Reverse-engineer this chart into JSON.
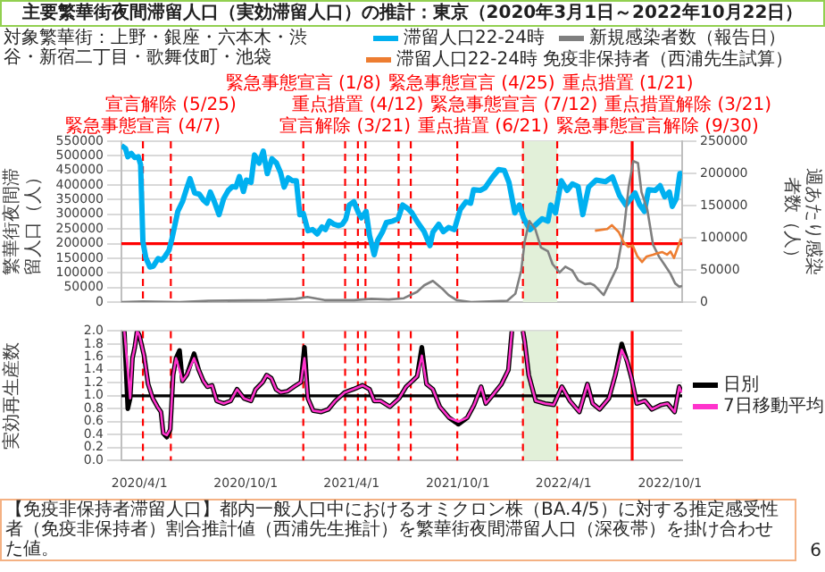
{
  "chart_data": [
    {
      "type": "line",
      "title": "主要繁華街夜間滞留人口（実効滞留人口）の推計：東京（2020年3月1日～2022年10月22日）",
      "subtitle": "対象繁華街：上野・銀座・六本木・渋谷・新宿二丁目・歌舞伎町・池袋",
      "ylabel": "繁華街夜間滞留人口（人）",
      "y2label": "週あたり感染者数（人）",
      "xlim": [
        "2020-03-01",
        "2022-10-22"
      ],
      "ylim": [
        0,
        550000
      ],
      "yticks": [
        0,
        50000,
        100000,
        150000,
        200000,
        250000,
        300000,
        350000,
        400000,
        450000,
        500000,
        550000
      ],
      "y2lim": [
        0,
        250000
      ],
      "y2ticks": [
        0,
        50000,
        100000,
        150000,
        200000,
        250000
      ],
      "grid": "y",
      "legend": "top",
      "tick_labels": "y",
      "marker": "none",
      "series": [
        {
          "name": "滞留人口22-24時",
          "color": "#00b0f0",
          "x": [
            "2020-03-01",
            "2020-03-08",
            "2020-03-12",
            "2020-03-18",
            "2020-03-24",
            "2020-03-30",
            "2020-04-03",
            "2020-04-07",
            "2020-04-12",
            "2020-04-19",
            "2020-04-25",
            "2020-05-03",
            "2020-05-09",
            "2020-05-15",
            "2020-05-22",
            "2020-05-27",
            "2020-06-06",
            "2020-06-14",
            "2020-06-21",
            "2020-06-27",
            "2020-07-05",
            "2020-07-13",
            "2020-07-20",
            "2020-07-26",
            "2020-08-01",
            "2020-08-08",
            "2020-08-16",
            "2020-08-24",
            "2020-09-01",
            "2020-09-08",
            "2020-09-14",
            "2020-09-20",
            "2020-09-27",
            "2020-10-02",
            "2020-10-10",
            "2020-10-16",
            "2020-10-24",
            "2020-10-31",
            "2020-11-07",
            "2020-11-15",
            "2020-11-23",
            "2020-11-30",
            "2020-12-06",
            "2020-12-13",
            "2020-12-20",
            "2020-12-27",
            "2021-01-02",
            "2021-01-08",
            "2021-01-16",
            "2021-01-24",
            "2021-02-01",
            "2021-02-09",
            "2021-02-15",
            "2021-02-22",
            "2021-03-02",
            "2021-03-10",
            "2021-03-16",
            "2021-03-22",
            "2021-03-28",
            "2021-04-05",
            "2021-04-13",
            "2021-04-18",
            "2021-04-26",
            "2021-05-02",
            "2021-05-10",
            "2021-05-16",
            "2021-05-24",
            "2021-05-31",
            "2021-06-11",
            "2021-06-20",
            "2021-06-28",
            "2021-07-06",
            "2021-07-14",
            "2021-07-24",
            "2021-08-04",
            "2021-08-14",
            "2021-08-19",
            "2021-08-29",
            "2021-09-06",
            "2021-09-15",
            "2021-09-25",
            "2021-10-05",
            "2021-10-15",
            "2021-10-23",
            "2021-10-28",
            "2021-11-09",
            "2021-11-17",
            "2021-11-29",
            "2021-12-10",
            "2021-12-20",
            "2021-12-28",
            "2022-01-07",
            "2022-01-15",
            "2022-01-22",
            "2022-02-02",
            "2022-02-11",
            "2022-02-23",
            "2022-03-05",
            "2022-03-10",
            "2022-03-18",
            "2022-03-28",
            "2022-04-07",
            "2022-04-16",
            "2022-04-26",
            "2022-05-04",
            "2022-05-14",
            "2022-05-27",
            "2022-06-12",
            "2022-06-24",
            "2022-07-06",
            "2022-07-17",
            "2022-08-02",
            "2022-08-10",
            "2022-08-18",
            "2022-08-25",
            "2022-09-06",
            "2022-09-14",
            "2022-09-22",
            "2022-09-30",
            "2022-10-05",
            "2022-10-12",
            "2022-10-18",
            "2022-10-22"
          ],
          "values": [
            535000,
            525000,
            497000,
            508000,
            494000,
            497000,
            470000,
            206000,
            151000,
            120000,
            123000,
            149000,
            143000,
            156000,
            178000,
            217000,
            310000,
            343000,
            387000,
            422000,
            373000,
            369000,
            349000,
            338000,
            376000,
            343000,
            299000,
            354000,
            382000,
            395000,
            393000,
            429000,
            378000,
            417000,
            409000,
            503000,
            475000,
            516000,
            439000,
            490000,
            475000,
            442000,
            393000,
            425000,
            415000,
            415000,
            299000,
            303000,
            244000,
            248000,
            233000,
            257000,
            248000,
            277000,
            266000,
            261000,
            266000,
            283000,
            332000,
            343000,
            305000,
            288000,
            310000,
            228000,
            162000,
            211000,
            239000,
            272000,
            277000,
            285000,
            332000,
            321000,
            305000,
            272000,
            241000,
            193000,
            239000,
            266000,
            241000,
            255000,
            248000,
            316000,
            343000,
            338000,
            384000,
            382000,
            391000,
            426000,
            453000,
            450000,
            409000,
            305000,
            332000,
            288000,
            248000,
            263000,
            285000,
            277000,
            332000,
            305000,
            415000,
            382000,
            404000,
            395000,
            299000,
            393000,
            417000,
            412000,
            428000,
            365000,
            332000,
            373000,
            332000,
            310000,
            384000,
            382000,
            398000,
            360000,
            376000,
            327000,
            354000,
            439000,
            440000
          ]
        },
        {
          "name": "新規感染者数（報告日）",
          "color": "#7f7f7f",
          "axis": "y2",
          "x": [
            "2020-03-01",
            "2020-04-07",
            "2020-06-09",
            "2020-07-29",
            "2020-11-06",
            "2020-12-26",
            "2021-01-15",
            "2021-02-14",
            "2021-04-05",
            "2021-05-05",
            "2021-06-04",
            "2021-06-30",
            "2021-07-23",
            "2021-08-04",
            "2021-08-19",
            "2021-09-04",
            "2021-09-15",
            "2021-09-29",
            "2021-10-24",
            "2021-12-25",
            "2022-01-08",
            "2022-01-18",
            "2022-01-24",
            "2022-02-01",
            "2022-02-11",
            "2022-02-21",
            "2022-03-05",
            "2022-03-13",
            "2022-03-25",
            "2022-04-04",
            "2022-04-16",
            "2022-04-26",
            "2022-05-08",
            "2022-05-17",
            "2022-05-24",
            "2022-06-09",
            "2022-07-02",
            "2022-07-14",
            "2022-07-22",
            "2022-07-30",
            "2022-08-07",
            "2022-08-13",
            "2022-08-23",
            "2022-09-02",
            "2022-09-12",
            "2022-09-21",
            "2022-10-02",
            "2022-10-10",
            "2022-10-17",
            "2022-10-22"
          ],
          "values": [
            0,
            1000,
            0,
            2000,
            3000,
            5000,
            8000,
            3000,
            3000,
            5000,
            4000,
            6000,
            16000,
            26000,
            33000,
            21000,
            11000,
            3000,
            0,
            2000,
            13000,
            49000,
            94000,
            126000,
            114000,
            85000,
            79000,
            59000,
            46000,
            55000,
            49000,
            34000,
            28000,
            29000,
            26000,
            11000,
            54000,
            114000,
            179000,
            219000,
            216000,
            171000,
            144000,
            89000,
            71000,
            59000,
            44000,
            29000,
            24000,
            25000
          ]
        },
        {
          "name": "滞留人口22-24時 免疫非保持者（西浦先生試算）",
          "color": "#ed7d31",
          "x": [
            "2022-05-25",
            "2022-06-15",
            "2022-06-23",
            "2022-07-05",
            "2022-07-13",
            "2022-07-21",
            "2022-07-29",
            "2022-08-06",
            "2022-08-14",
            "2022-08-22",
            "2022-09-02",
            "2022-09-10",
            "2022-09-18",
            "2022-09-26",
            "2022-10-02",
            "2022-10-08",
            "2022-10-20"
          ],
          "values": [
            244000,
            250000,
            263000,
            239000,
            206000,
            189000,
            193000,
            156000,
            137000,
            156000,
            162000,
            167000,
            171000,
            162000,
            173000,
            151000,
            217000
          ]
        }
      ],
      "ref_lines": [
        {
          "axis": "x",
          "value": "2020-04-07",
          "label": "緊急事態宣言 (4/7)",
          "color": "#ff0000",
          "line_style": "dashed"
        },
        {
          "axis": "x",
          "value": "2020-05-25",
          "label": "宣言解除 (5/25)",
          "color": "#ff0000",
          "line_style": "dashed"
        },
        {
          "axis": "x",
          "value": "2021-01-08",
          "label": "緊急事態宣言 (1/8)",
          "color": "#ff0000",
          "line_style": "dashed"
        },
        {
          "axis": "x",
          "value": "2021-03-21",
          "label": "宣言解除 (3/21)",
          "color": "#ff0000",
          "line_style": "dashed"
        },
        {
          "axis": "x",
          "value": "2021-04-12",
          "label": "重点措置 (4/12)",
          "color": "#ff0000",
          "line_style": "dashed"
        },
        {
          "axis": "x",
          "value": "2021-04-25",
          "label": "緊急事態宣言 (4/25)",
          "color": "#ff0000",
          "line_style": "dashed"
        },
        {
          "axis": "x",
          "value": "2021-06-21",
          "label": "重点措置 (6/21)",
          "color": "#ff0000",
          "line_style": "dashed"
        },
        {
          "axis": "x",
          "value": "2021-07-12",
          "label": "緊急事態宣言 (7/12)",
          "color": "#ff0000",
          "line_style": "dashed"
        },
        {
          "axis": "x",
          "value": "2021-09-30",
          "label": "緊急事態宣言解除 (9/30)",
          "color": "#ff0000",
          "line_style": "dashed"
        },
        {
          "axis": "x",
          "value": "2022-01-21",
          "label": "重点措置 (1/21)",
          "color": "#ff0000",
          "line_style": "dashed"
        },
        {
          "axis": "x",
          "value": "2022-03-21",
          "label": "重点措置解除 (3/21)",
          "color": "#ff0000",
          "line_style": "dashed"
        },
        {
          "axis": "x",
          "value": "2022-07-28",
          "color": "#ff0000",
          "line_style": "solid"
        },
        {
          "axis": "y",
          "value": 200000,
          "color": "#ff0000",
          "line_style": "solid"
        }
      ],
      "bands": [
        {
          "axis": "x",
          "from": "2022-01-21",
          "to": "2022-03-21",
          "color": "#e2f0d9"
        }
      ]
    },
    {
      "type": "line",
      "ylabel": "実効再生産数",
      "xlim": [
        "2020-03-01",
        "2022-10-22"
      ],
      "ylim": [
        0,
        2
      ],
      "yticks": [
        {
          "value": 0,
          "label": "0.0"
        },
        0.2,
        0.4,
        0.6,
        0.8,
        {
          "value": 1,
          "label": "1.0"
        },
        1.2,
        1.4,
        1.6,
        1.8,
        {
          "value": 2,
          "label": "2.0"
        }
      ],
      "xticks": [
        {
          "value": "2020-04-01",
          "label": "2020/4/1"
        },
        {
          "value": "2020-10-01",
          "label": "2020/10/1"
        },
        {
          "value": "2021-04-01",
          "label": "2021/4/1"
        },
        {
          "value": "2021-10-01",
          "label": "2021/10/1"
        },
        {
          "value": "2022-04-01",
          "label": "2022/4/1"
        },
        {
          "value": "2022-10-01",
          "label": "2022/10/1"
        }
      ],
      "grid": "y",
      "legend": "right",
      "marker": "none",
      "x": [
        "2020-03-06",
        "2020-03-12",
        "2020-03-16",
        "2020-03-20",
        "2020-03-24",
        "2020-03-28",
        "2020-04-01",
        "2020-04-09",
        "2020-04-16",
        "2020-04-24",
        "2020-05-02",
        "2020-05-08",
        "2020-05-12",
        "2020-05-18",
        "2020-05-24",
        "2020-05-29",
        "2020-06-03",
        "2020-06-09",
        "2020-06-14",
        "2020-06-22",
        "2020-07-04",
        "2020-07-12",
        "2020-07-20",
        "2020-07-27",
        "2020-08-04",
        "2020-08-12",
        "2020-08-24",
        "2020-09-05",
        "2020-09-16",
        "2020-09-28",
        "2020-10-10",
        "2020-10-18",
        "2020-10-30",
        "2020-11-06",
        "2020-11-14",
        "2020-11-22",
        "2020-11-30",
        "2020-12-12",
        "2020-12-23",
        "2021-01-04",
        "2021-01-10",
        "2021-01-16",
        "2021-01-25",
        "2021-02-08",
        "2021-02-20",
        "2021-03-04",
        "2021-03-20",
        "2021-04-04",
        "2021-04-20",
        "2021-05-02",
        "2021-05-10",
        "2021-05-21",
        "2021-06-06",
        "2021-06-22",
        "2021-07-04",
        "2021-07-15",
        "2021-07-23",
        "2021-07-31",
        "2021-08-08",
        "2021-08-19",
        "2021-08-31",
        "2021-09-16",
        "2021-10-02",
        "2021-10-17",
        "2021-10-29",
        "2021-11-10",
        "2021-11-18",
        "2021-11-30",
        "2021-12-15",
        "2021-12-27",
        "2022-01-02",
        "2022-01-12",
        "2022-01-21",
        "2022-01-24",
        "2022-01-31",
        "2022-02-12",
        "2022-02-28",
        "2022-03-15",
        "2022-03-29",
        "2022-04-12",
        "2022-04-28",
        "2022-05-12",
        "2022-05-21",
        "2022-06-02",
        "2022-06-18",
        "2022-06-29",
        "2022-07-10",
        "2022-07-19",
        "2022-07-27",
        "2022-08-05",
        "2022-08-19",
        "2022-08-31",
        "2022-09-16",
        "2022-09-27",
        "2022-10-09",
        "2022-10-17",
        "2022-10-21"
      ],
      "series": [
        {
          "name": "日別",
          "color": "#000000",
          "values": [
            2.0,
            0.8,
            0.96,
            1.58,
            1.75,
            2.0,
            1.93,
            1.62,
            1.18,
            0.96,
            0.83,
            0.75,
            0.42,
            0.36,
            0.48,
            1.32,
            1.58,
            1.7,
            1.23,
            1.33,
            1.65,
            1.4,
            1.23,
            1.14,
            1.16,
            0.92,
            0.88,
            0.92,
            1.1,
            0.96,
            0.92,
            1.1,
            1.21,
            1.32,
            1.27,
            1.1,
            1.05,
            1.07,
            1.14,
            1.21,
            1.75,
            0.96,
            0.77,
            0.75,
            0.79,
            0.92,
            1.05,
            1.1,
            1.16,
            1.1,
            0.92,
            0.92,
            0.83,
            0.96,
            1.14,
            1.23,
            1.3,
            1.75,
            1.18,
            1.1,
            0.83,
            0.66,
            0.56,
            0.66,
            0.86,
            1.14,
            0.88,
            1.01,
            1.18,
            1.4,
            2.0,
            null,
            2.0,
            1.84,
            1.32,
            0.92,
            0.88,
            0.86,
            1.14,
            0.92,
            0.75,
            1.18,
            0.88,
            0.79,
            0.96,
            1.32,
            1.8,
            1.54,
            1.27,
            0.88,
            0.92,
            0.79,
            0.86,
            0.88,
            0.75,
            1.14,
            1.05
          ]
        },
        {
          "name": "7日移動平均",
          "color": "#ff33cc",
          "values": [
            2.0,
            1.4,
            0.96,
            1.58,
            1.75,
            2.0,
            1.93,
            1.62,
            1.18,
            0.96,
            0.83,
            0.75,
            0.42,
            0.39,
            0.48,
            1.32,
            1.58,
            1.4,
            1.23,
            1.33,
            1.58,
            1.4,
            1.23,
            1.14,
            1.16,
            0.92,
            0.88,
            0.92,
            1.1,
            0.96,
            0.92,
            1.1,
            1.21,
            1.32,
            1.27,
            1.1,
            1.05,
            1.07,
            1.14,
            1.21,
            1.58,
            0.96,
            0.77,
            0.75,
            0.79,
            0.92,
            1.05,
            1.1,
            1.16,
            1.1,
            0.92,
            0.92,
            0.83,
            0.96,
            1.14,
            1.23,
            1.3,
            1.62,
            1.18,
            1.1,
            0.83,
            0.66,
            0.6,
            0.66,
            0.86,
            1.14,
            0.88,
            1.01,
            1.18,
            1.4,
            2.0,
            null,
            2.0,
            1.84,
            1.32,
            0.92,
            0.88,
            0.86,
            1.14,
            0.92,
            0.75,
            1.18,
            0.88,
            0.79,
            0.96,
            1.32,
            1.71,
            1.54,
            1.27,
            0.88,
            0.92,
            0.79,
            0.86,
            0.88,
            0.75,
            1.14,
            1.05
          ]
        }
      ],
      "ref_lines": [
        {
          "axis": "x",
          "value": "2020-04-07",
          "color": "#ff0000",
          "line_style": "dashed"
        },
        {
          "axis": "x",
          "value": "2020-05-25",
          "color": "#ff0000",
          "line_style": "dashed"
        },
        {
          "axis": "x",
          "value": "2021-01-08",
          "color": "#ff0000",
          "line_style": "dashed"
        },
        {
          "axis": "x",
          "value": "2021-03-21",
          "color": "#ff0000",
          "line_style": "dashed"
        },
        {
          "axis": "x",
          "value": "2021-04-12",
          "color": "#ff0000",
          "line_style": "dashed"
        },
        {
          "axis": "x",
          "value": "2021-04-25",
          "color": "#ff0000",
          "line_style": "dashed"
        },
        {
          "axis": "x",
          "value": "2021-06-21",
          "color": "#ff0000",
          "line_style": "dashed"
        },
        {
          "axis": "x",
          "value": "2021-07-12",
          "color": "#ff0000",
          "line_style": "dashed"
        },
        {
          "axis": "x",
          "value": "2021-09-30",
          "color": "#ff0000",
          "line_style": "dashed"
        },
        {
          "axis": "x",
          "value": "2022-01-21",
          "color": "#ff0000",
          "line_style": "dashed"
        },
        {
          "axis": "x",
          "value": "2022-03-21",
          "color": "#ff0000",
          "line_style": "dashed"
        },
        {
          "axis": "x",
          "value": "2022-07-28",
          "color": "#ff0000",
          "line_style": "solid"
        },
        {
          "axis": "y",
          "value": 1,
          "color": "#000000",
          "line_style": "solid"
        }
      ],
      "bands": [
        {
          "axis": "x",
          "from": "2022-01-21",
          "to": "2022-03-21",
          "color": "#e2f0d9"
        }
      ],
      "annotations": [
        "【免疫非保持者滞留人口】都内一般人口中におけるオミクロン株（BA.4/5）に対する推定感受性者（免疫非保持者）割合推計値（西浦先生推計）を繁華街夜間滞留人口（深夜帯）を掛け合わせた値。",
        "6"
      ]
    }
  ]
}
